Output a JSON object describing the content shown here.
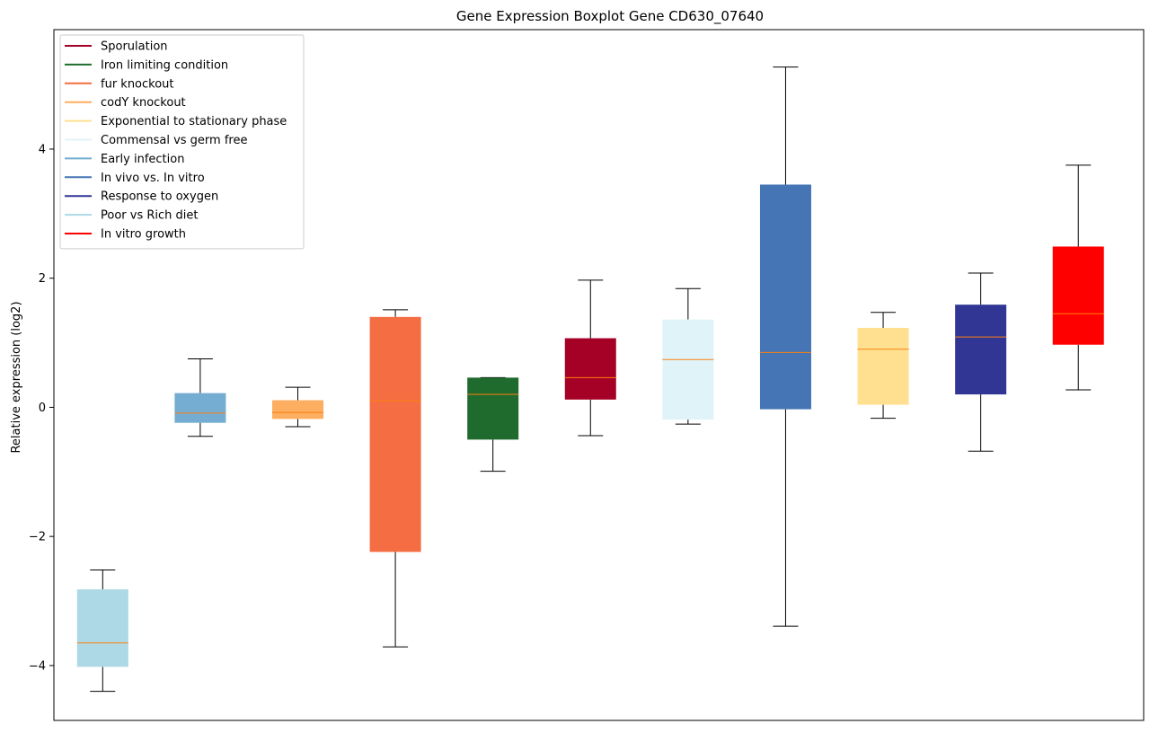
{
  "chart_data": {
    "type": "boxplot",
    "title": "Gene Expression Boxplot Gene CD630_07640",
    "xlabel": "",
    "ylabel": "Relative expression (log2)",
    "ylim": [
      -4.85,
      5.85
    ],
    "yticks": [
      -4,
      -2,
      0,
      2,
      4
    ],
    "ytick_labels": [
      "−4",
      "−2",
      "0",
      "2",
      "4"
    ],
    "grid": false,
    "legend_position": "top-left",
    "median_color": "#ff7f0e",
    "series": [
      {
        "name": "Poor vs Rich diet",
        "color": "#add8e6",
        "whisker_low": -4.4,
        "q1": -4.02,
        "median": -3.65,
        "q3": -2.82,
        "whisker_high": -2.52
      },
      {
        "name": "Early infection",
        "color": "#74add1",
        "whisker_low": -0.45,
        "q1": -0.24,
        "median": -0.09,
        "q3": 0.22,
        "whisker_high": 0.75
      },
      {
        "name": "codY knockout",
        "color": "#fdae61",
        "whisker_low": -0.3,
        "q1": -0.18,
        "median": -0.08,
        "q3": 0.11,
        "whisker_high": 0.31
      },
      {
        "name": "fur knockout",
        "color": "#f46d43",
        "whisker_low": -3.71,
        "q1": -2.24,
        "median": 0.1,
        "q3": 1.4,
        "whisker_high": 1.51
      },
      {
        "name": "Iron limiting condition",
        "color": "#1f6b2e",
        "whisker_low": -0.99,
        "q1": -0.5,
        "median": 0.2,
        "q3": 0.46,
        "whisker_high": 0.46
      },
      {
        "name": "Sporulation",
        "color": "#a50026",
        "whisker_low": -0.44,
        "q1": 0.12,
        "median": 0.46,
        "q3": 1.07,
        "whisker_high": 1.97
      },
      {
        "name": "Commensal vs germ free",
        "color": "#e0f3f8",
        "whisker_low": -0.26,
        "q1": -0.19,
        "median": 0.74,
        "q3": 1.36,
        "whisker_high": 1.84
      },
      {
        "name": "In vivo vs. In vitro",
        "color": "#4575b4",
        "whisker_low": -3.39,
        "q1": -0.03,
        "median": 0.85,
        "q3": 3.45,
        "whisker_high": 5.27
      },
      {
        "name": "Exponential to stationary phase",
        "color": "#fee090",
        "whisker_low": -0.17,
        "q1": 0.04,
        "median": 0.9,
        "q3": 1.23,
        "whisker_high": 1.47
      },
      {
        "name": "Response to oxygen",
        "color": "#313695",
        "whisker_low": -0.68,
        "q1": 0.2,
        "median": 1.09,
        "q3": 1.59,
        "whisker_high": 2.08
      },
      {
        "name": "In vitro growth",
        "color": "#ff0000",
        "whisker_low": 0.27,
        "q1": 0.97,
        "median": 1.45,
        "q3": 2.49,
        "whisker_high": 3.75
      }
    ],
    "legend": [
      {
        "label": "Sporulation",
        "color": "#a50026"
      },
      {
        "label": "Iron limiting condition",
        "color": "#1f6b2e"
      },
      {
        "label": "fur knockout",
        "color": "#f46d43"
      },
      {
        "label": "codY knockout",
        "color": "#fdae61"
      },
      {
        "label": "Exponential to stationary phase",
        "color": "#fee090"
      },
      {
        "label": "Commensal vs germ free",
        "color": "#e0f3f8"
      },
      {
        "label": "Early infection",
        "color": "#74add1"
      },
      {
        "label": "In vivo vs. In vitro",
        "color": "#4575b4"
      },
      {
        "label": "Response to oxygen",
        "color": "#313695"
      },
      {
        "label": "Poor vs Rich diet",
        "color": "#add8e6"
      },
      {
        "label": "In vitro growth",
        "color": "#ff0000"
      }
    ]
  }
}
